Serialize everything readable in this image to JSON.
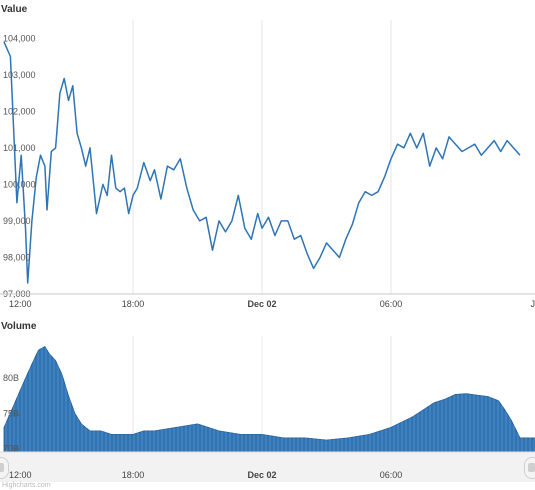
{
  "chart_data": [
    {
      "type": "line",
      "title": "Value",
      "ylim": [
        97000,
        104500
      ],
      "y_ticks": [
        97000,
        98000,
        99000,
        100000,
        101000,
        102000,
        103000,
        104000
      ],
      "y_tick_labels": [
        "97,000",
        "98,000",
        "99,000",
        "100,000",
        "101,000",
        "102,000",
        "103,000",
        "104,000"
      ],
      "x_labels": [
        "12:00",
        "18:00",
        "Dec 02",
        "06:00",
        "J"
      ],
      "x_label_bold": "Dec 02",
      "x_label_hours": [
        0,
        6,
        12,
        18,
        24
      ],
      "grid": "vertical",
      "line_color": "#2f74b5",
      "series": [
        {
          "x_hours": [
            0,
            0.3,
            0.6,
            0.8,
            1,
            1.1,
            1.3,
            1.5,
            1.7,
            1.9,
            2.0,
            2.2,
            2.4,
            2.6,
            2.8,
            3.0,
            3.2,
            3.4,
            3.6,
            3.8,
            4.0,
            4.3,
            4.6,
            4.8,
            5.0,
            5.2,
            5.4,
            5.6,
            5.8,
            6.0,
            6.2,
            6.5,
            6.8,
            7.0,
            7.3,
            7.6,
            7.9,
            8.2,
            8.5,
            8.8,
            9.1,
            9.4,
            9.7,
            10.0,
            10.3,
            10.6,
            10.9,
            11.2,
            11.5,
            11.8,
            12.0,
            12.3,
            12.6,
            12.9,
            13.2,
            13.5,
            13.8,
            14.1,
            14.4,
            14.7,
            15.0,
            15.3,
            15.6,
            15.9,
            16.2,
            16.5,
            16.8,
            17.1,
            17.4,
            17.7,
            18.0,
            18.3,
            18.6,
            18.9,
            19.2,
            19.5,
            19.8,
            20.1,
            20.4,
            20.7,
            21.0,
            21.3,
            21.6,
            21.9,
            22.2,
            22.5,
            22.8,
            23.1,
            23.4,
            23.7,
            24.0
          ],
          "y": [
            103900,
            103500,
            99500,
            100800,
            98800,
            97300,
            99000,
            100200,
            100800,
            100500,
            99300,
            100900,
            101000,
            102500,
            102900,
            102300,
            102700,
            101400,
            101000,
            100500,
            101000,
            99200,
            100000,
            99700,
            100800,
            99900,
            99800,
            99900,
            99200,
            99700,
            99900,
            100600,
            100100,
            100400,
            99600,
            100500,
            100400,
            100700,
            99900,
            99300,
            99000,
            99100,
            98200,
            99000,
            98700,
            99000,
            99700,
            98800,
            98500,
            99200,
            98800,
            99100,
            98600,
            99000,
            99000,
            98500,
            98600,
            98100,
            97700,
            98000,
            98400,
            98200,
            98000,
            98500,
            98900,
            99500,
            99800,
            99700,
            99800,
            100200,
            100700,
            101100,
            101000,
            101400,
            101000,
            101400,
            100500,
            101000,
            100700,
            101300,
            101100,
            100900,
            101000,
            101100,
            100800,
            101000,
            101200,
            100900,
            101200,
            101000,
            100800
          ]
        }
      ]
    },
    {
      "type": "area",
      "title": "Volume",
      "ylim": [
        69500,
        86000
      ],
      "y_ticks": [
        70000,
        75000,
        80000
      ],
      "y_tick_labels": [
        "70B",
        "75B",
        "80B"
      ],
      "x_labels": [
        "12:00",
        "18:00",
        "Dec 02",
        "06:00"
      ],
      "x_label_bold": "Dec 02",
      "x_label_hours": [
        0,
        6,
        12,
        18
      ],
      "grid": "vertical",
      "fill_color": "#2f74b5",
      "series": [
        {
          "x_hours": [
            0,
            0.5,
            1,
            1.3,
            1.6,
            1.9,
            2.1,
            2.4,
            2.7,
            3.0,
            3.3,
            3.6,
            4.0,
            4.5,
            5.0,
            5.5,
            6.0,
            6.5,
            7.0,
            8.0,
            9.0,
            10.0,
            11.0,
            12.0,
            13.0,
            14.0,
            15.0,
            16.0,
            17.0,
            18.0,
            19.0,
            19.5,
            20.0,
            20.5,
            21.0,
            21.5,
            22.0,
            22.5,
            23.0,
            23.3,
            23.6,
            24.0
          ],
          "y": [
            73000,
            76500,
            80000,
            82000,
            84000,
            84500,
            83500,
            82500,
            80500,
            77500,
            75000,
            73500,
            72500,
            72500,
            72000,
            72000,
            72000,
            72500,
            72500,
            73000,
            73500,
            72500,
            72000,
            72000,
            71500,
            71500,
            71200,
            71500,
            72000,
            73000,
            74500,
            75500,
            76500,
            77000,
            77700,
            77800,
            77600,
            77400,
            76800,
            75500,
            74000,
            71500
          ]
        }
      ]
    }
  ],
  "credit": "Highcharts.com"
}
